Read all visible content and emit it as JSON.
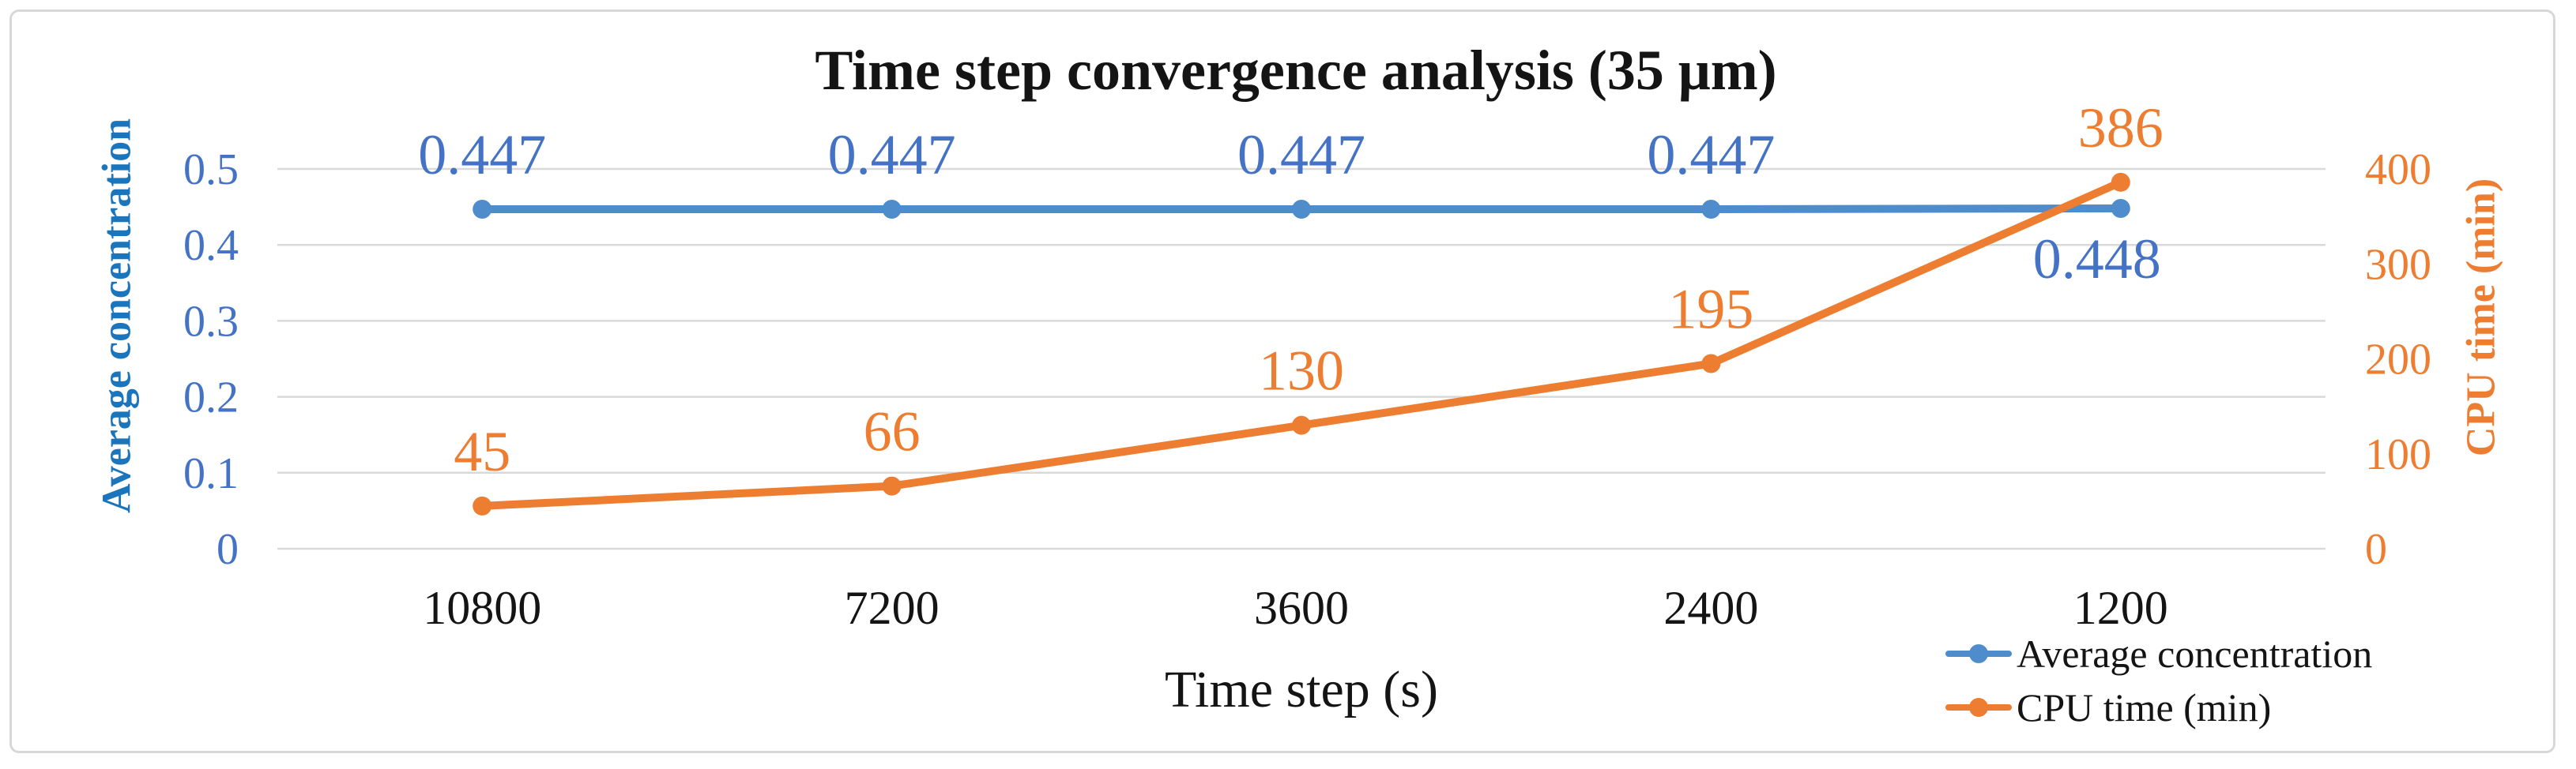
{
  "figure": {
    "title": "Time step convergence analysis (35 μm)"
  },
  "chart_data": {
    "type": "line",
    "title": "Time step convergence analysis (35 μm)",
    "categories": [
      "10800",
      "7200",
      "3600",
      "2400",
      "1200"
    ],
    "xlabel": "Time step (s)",
    "grid": true,
    "legend_position": "bottom-right",
    "axes": {
      "left": {
        "label": "Average concentration",
        "ticks": [
          "0.5",
          "0.4",
          "0.3",
          "0.2",
          "0.1",
          "0"
        ],
        "range": [
          0,
          0.5
        ],
        "title_color": "#1b75bc",
        "tick_color": "#4472c4"
      },
      "right": {
        "label": "CPU time (min)",
        "ticks": [
          "400",
          "300",
          "200",
          "100",
          "0"
        ],
        "range": [
          0,
          400
        ],
        "title_color": "#ed7d31",
        "tick_color": "#ed7d31"
      }
    },
    "series": [
      {
        "name": "Average concentration",
        "axis": "left",
        "color": "#4e8ccb",
        "label_color": "#4472c4",
        "values": [
          0.447,
          0.447,
          0.447,
          0.447,
          0.448
        ],
        "data_labels": [
          "0.447",
          "0.447",
          "0.447",
          "0.447",
          "0.448"
        ],
        "label_placement": [
          "above",
          "above",
          "above",
          "above",
          "below"
        ]
      },
      {
        "name": "CPU time (min)",
        "axis": "right",
        "color": "#ed7d31",
        "label_color": "#ed7d31",
        "values": [
          45,
          66,
          130,
          195,
          386
        ],
        "data_labels": [
          "45",
          "66",
          "130",
          "195",
          "386"
        ],
        "label_placement": [
          "above",
          "above",
          "above",
          "above",
          "above"
        ]
      }
    ]
  },
  "legend": {
    "items": [
      {
        "label": "Average concentration",
        "color": "#4e8ccb"
      },
      {
        "label": "CPU time (min)",
        "color": "#ed7d31"
      }
    ]
  },
  "style": {
    "grid_color": "#d9d9d9",
    "x_tick_color": "#141414"
  }
}
